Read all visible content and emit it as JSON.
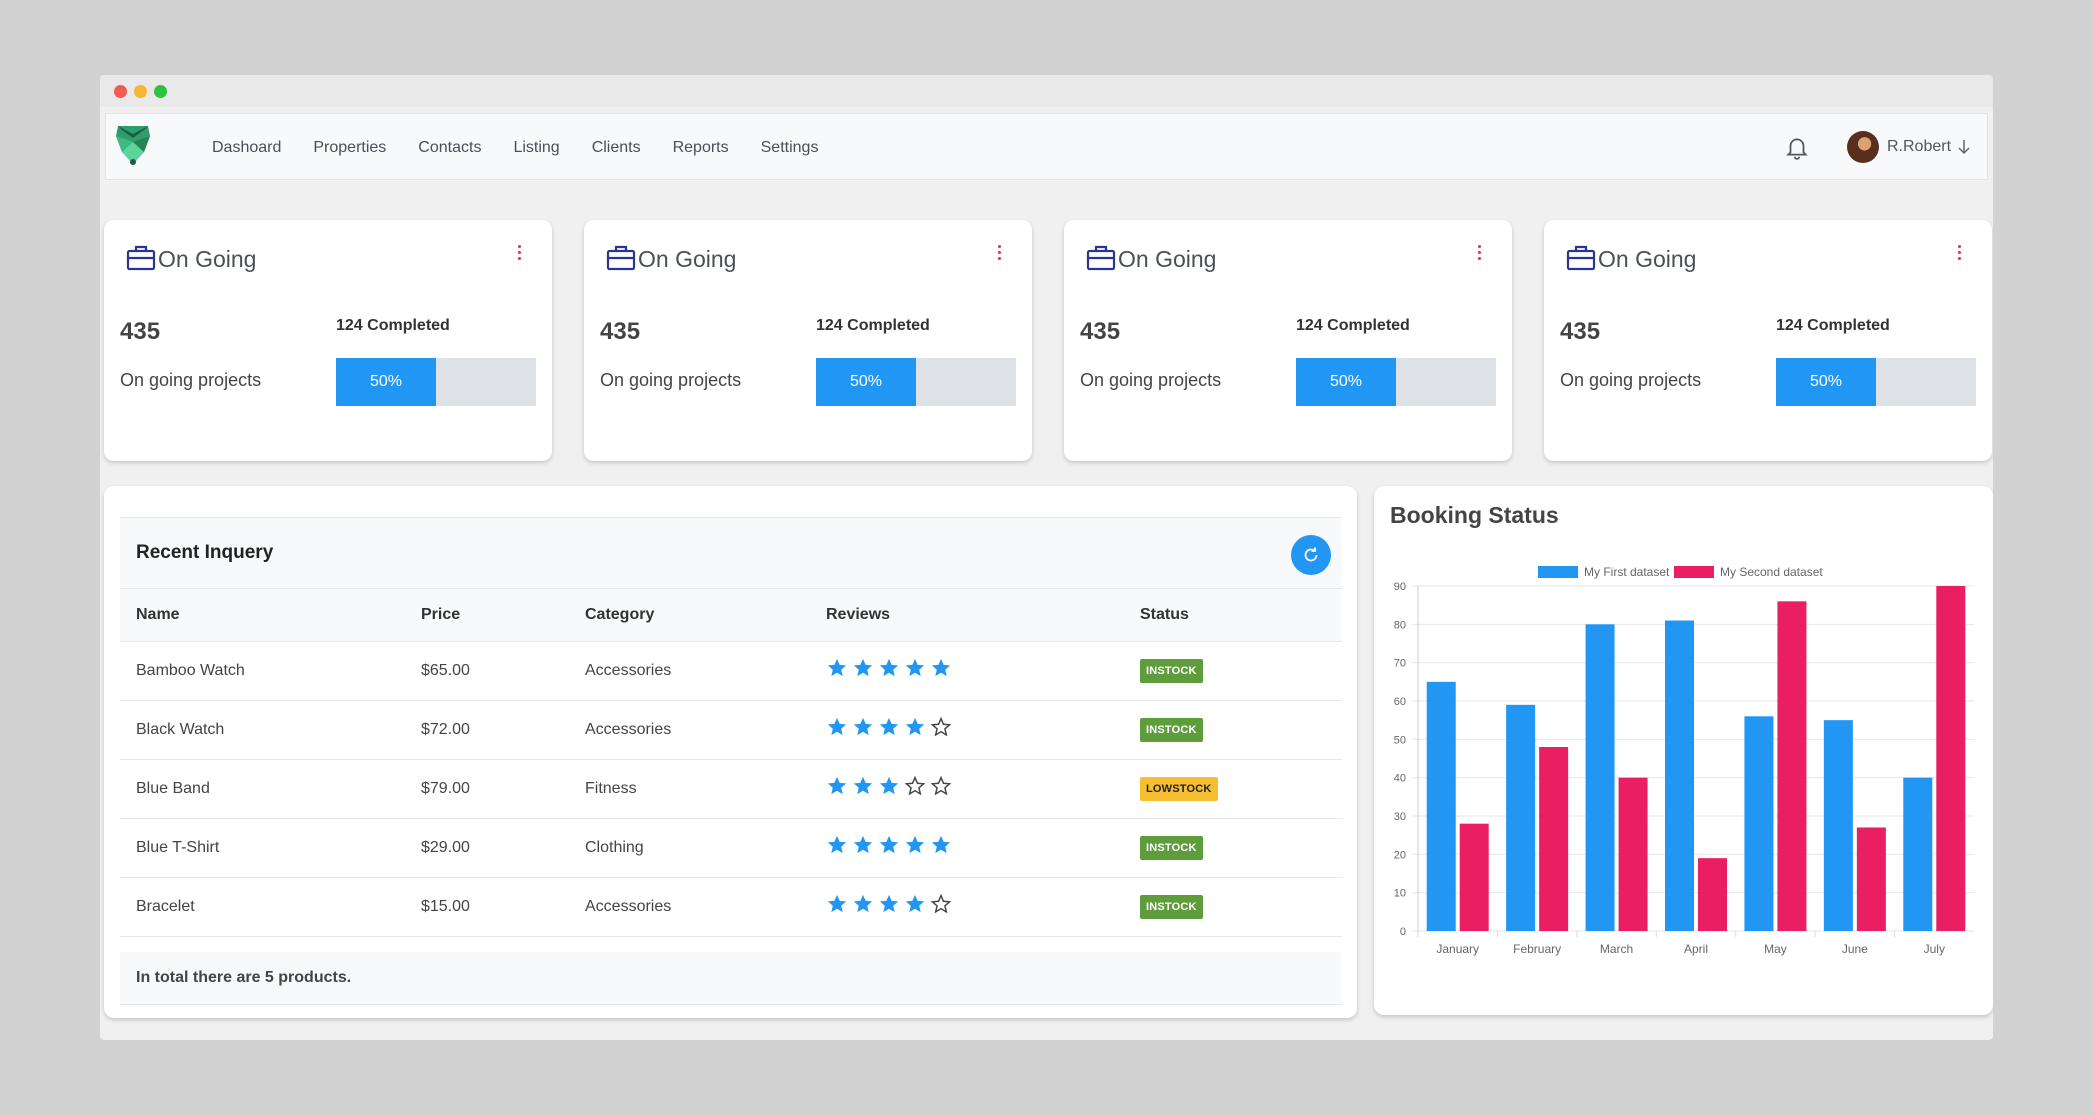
{
  "nav": {
    "links": [
      "Dashoard",
      "Properties",
      "Contacts",
      "Listing",
      "Clients",
      "Reports",
      "Settings"
    ],
    "user_name": "R.Robert"
  },
  "cards": [
    {
      "title": "On Going",
      "count": "435",
      "completed": "124 Completed",
      "subtitle": "On going projects",
      "progress_label": "50%",
      "progress": 0.5
    },
    {
      "title": "On Going",
      "count": "435",
      "completed": "124 Completed",
      "subtitle": "On going projects",
      "progress_label": "50%",
      "progress": 0.5
    },
    {
      "title": "On Going",
      "count": "435",
      "completed": "124 Completed",
      "subtitle": "On going projects",
      "progress_label": "50%",
      "progress": 0.5
    },
    {
      "title": "On Going",
      "count": "435",
      "completed": "124 Completed",
      "subtitle": "On going projects",
      "progress_label": "50%",
      "progress": 0.5
    }
  ],
  "inquiry": {
    "title": "Recent Inquery",
    "columns": [
      "Name",
      "Price",
      "Category",
      "Reviews",
      "Status"
    ],
    "rows": [
      {
        "name": "Bamboo Watch",
        "price": "$65.00",
        "category": "Accessories",
        "rating": 5,
        "status": "INSTOCK"
      },
      {
        "name": "Black Watch",
        "price": "$72.00",
        "category": "Accessories",
        "rating": 4,
        "status": "INSTOCK"
      },
      {
        "name": "Blue Band",
        "price": "$79.00",
        "category": "Fitness",
        "rating": 3,
        "status": "LOWSTOCK"
      },
      {
        "name": "Blue T-Shirt",
        "price": "$29.00",
        "category": "Clothing",
        "rating": 5,
        "status": "INSTOCK"
      },
      {
        "name": "Bracelet",
        "price": "$15.00",
        "category": "Accessories",
        "rating": 4,
        "status": "INSTOCK"
      }
    ],
    "footer": "In total there are 5 products."
  },
  "booking": {
    "title": "Booking Status"
  },
  "colors": {
    "accent": "#2196f3",
    "series1": "#2196f3",
    "series2": "#e91e63",
    "instock": "#5f9c3b",
    "lowstock": "#f6bf31"
  },
  "chart_data": {
    "type": "bar",
    "categories": [
      "January",
      "February",
      "March",
      "April",
      "May",
      "June",
      "July"
    ],
    "series": [
      {
        "name": "My First dataset",
        "values": [
          65,
          59,
          80,
          81,
          56,
          55,
          40
        ]
      },
      {
        "name": "My Second dataset",
        "values": [
          28,
          48,
          40,
          19,
          86,
          27,
          90
        ]
      }
    ],
    "ylim": [
      0,
      90
    ],
    "yticks": [
      0,
      10,
      20,
      30,
      40,
      50,
      60,
      70,
      80,
      90
    ],
    "grid": true,
    "legend": "top"
  }
}
